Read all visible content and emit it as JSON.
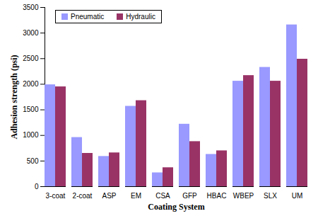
{
  "chart_data": {
    "type": "bar",
    "x_label": "Coating System",
    "y_label": "Adhesion strength (psi)",
    "categories": [
      "3-coat",
      "2-coat",
      "ASP",
      "EM",
      "CSA",
      "GFP",
      "HBAC",
      "WBEP",
      "SLX",
      "UM"
    ],
    "series": [
      {
        "name": "Pneumatic",
        "color": "#9999ff",
        "values": [
          1990,
          960,
          590,
          1570,
          270,
          1220,
          630,
          2060,
          2330,
          3160
        ]
      },
      {
        "name": "Hydraulic",
        "color": "#993366",
        "values": [
          1950,
          650,
          660,
          1680,
          370,
          880,
          700,
          2170,
          2060,
          2490
        ]
      }
    ],
    "ylim": [
      0,
      3500
    ],
    "yticks": [
      0,
      500,
      1000,
      1500,
      2000,
      2500,
      3000,
      3500
    ],
    "grid": false,
    "legend": "top-left"
  }
}
